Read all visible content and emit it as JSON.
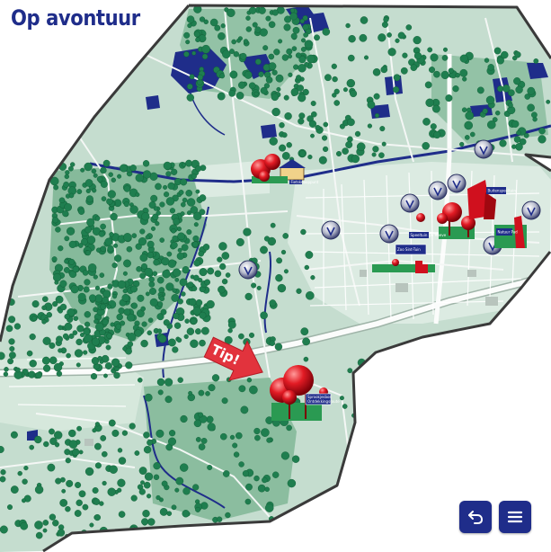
{
  "page": {
    "title": "Op avontuur"
  },
  "map": {
    "tip_label": "Tip!",
    "signs": [
      {
        "id": "sign-1",
        "text": "Fietsknooppunt"
      },
      {
        "id": "sign-2",
        "text": "Speeltuin De Hoeve"
      },
      {
        "id": "sign-3",
        "text": "Zoo Sint-Tuin"
      },
      {
        "id": "sign-4",
        "text": "Buitenspeeltuin"
      },
      {
        "id": "sign-5",
        "text": "Ontdekkingsroute"
      },
      {
        "id": "sign-6",
        "text": "Natuur Pad"
      },
      {
        "id": "sign-7",
        "text": "Sprookjesbos"
      }
    ]
  },
  "controls": {
    "back_icon": "undo-arrow-icon",
    "menu_icon": "hamburger-menu-icon"
  },
  "colors": {
    "brand": "#1f2d8a",
    "map_base": "#c5ddcf",
    "map_light": "#dcebe2",
    "forest": "#7fb696",
    "water": "#1f2d8a",
    "road": "#f7f9f8",
    "border": "#3a3a3a",
    "tree": "#1f7e4f",
    "marker": "#d0101e",
    "tip": "#e2333d"
  }
}
